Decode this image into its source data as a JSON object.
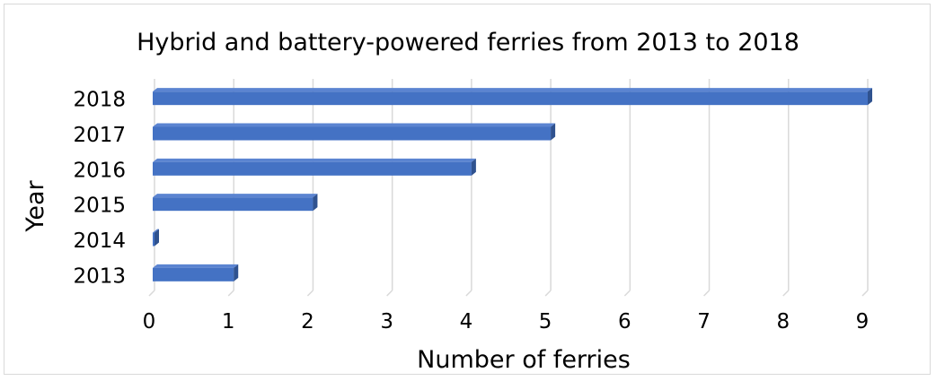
{
  "chart_data": {
    "type": "bar",
    "orientation": "horizontal",
    "title": "Hybrid and battery-powered ferries from 2013 to 2018",
    "xlabel": "Number of ferries",
    "ylabel": "Year",
    "categories": [
      "2013",
      "2014",
      "2015",
      "2016",
      "2017",
      "2018"
    ],
    "values": [
      1,
      0,
      2,
      4,
      5,
      9
    ],
    "xlim": [
      0,
      9
    ],
    "xticks": [
      "0",
      "1",
      "2",
      "3",
      "4",
      "5",
      "6",
      "7",
      "8",
      "9"
    ],
    "grid": true,
    "legend": "none",
    "bar_color": "#4472C4",
    "bar_dark_color": "#2F528F",
    "grid_color": "#d9d9d9",
    "text_color": "#000000"
  }
}
